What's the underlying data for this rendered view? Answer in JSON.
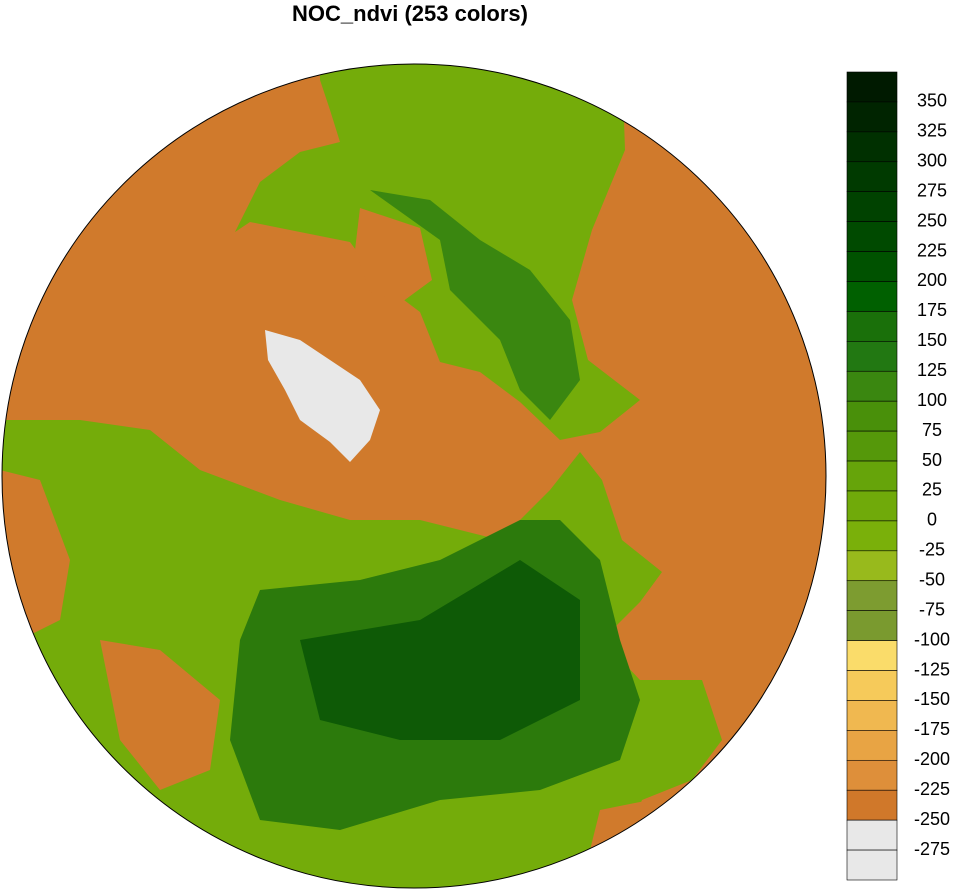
{
  "title": "NOC_ndvi (253 colors)",
  "colorbar": {
    "levels": [
      350,
      325,
      300,
      275,
      250,
      225,
      200,
      175,
      150,
      125,
      100,
      75,
      50,
      25,
      0,
      -25,
      -50,
      -75,
      -100,
      -125,
      -150,
      -175,
      -200,
      -225,
      -250,
      -275
    ],
    "colors": [
      "#001a00",
      "#002400",
      "#003000",
      "#003a00",
      "#004200",
      "#004a00",
      "#005200",
      "#006000",
      "#1a700a",
      "#227812",
      "#3a8710",
      "#49900a",
      "#55980a",
      "#66a40a",
      "#70aa0a",
      "#7ab00a",
      "#98ba1c",
      "#7d9c30",
      "#7a9a2f",
      "#fadc6a",
      "#f6ca5a",
      "#f0b850",
      "#e8a444",
      "#de8f3a",
      "#d0782a",
      "#e8e8e8",
      "#e8e8e8"
    ]
  }
}
